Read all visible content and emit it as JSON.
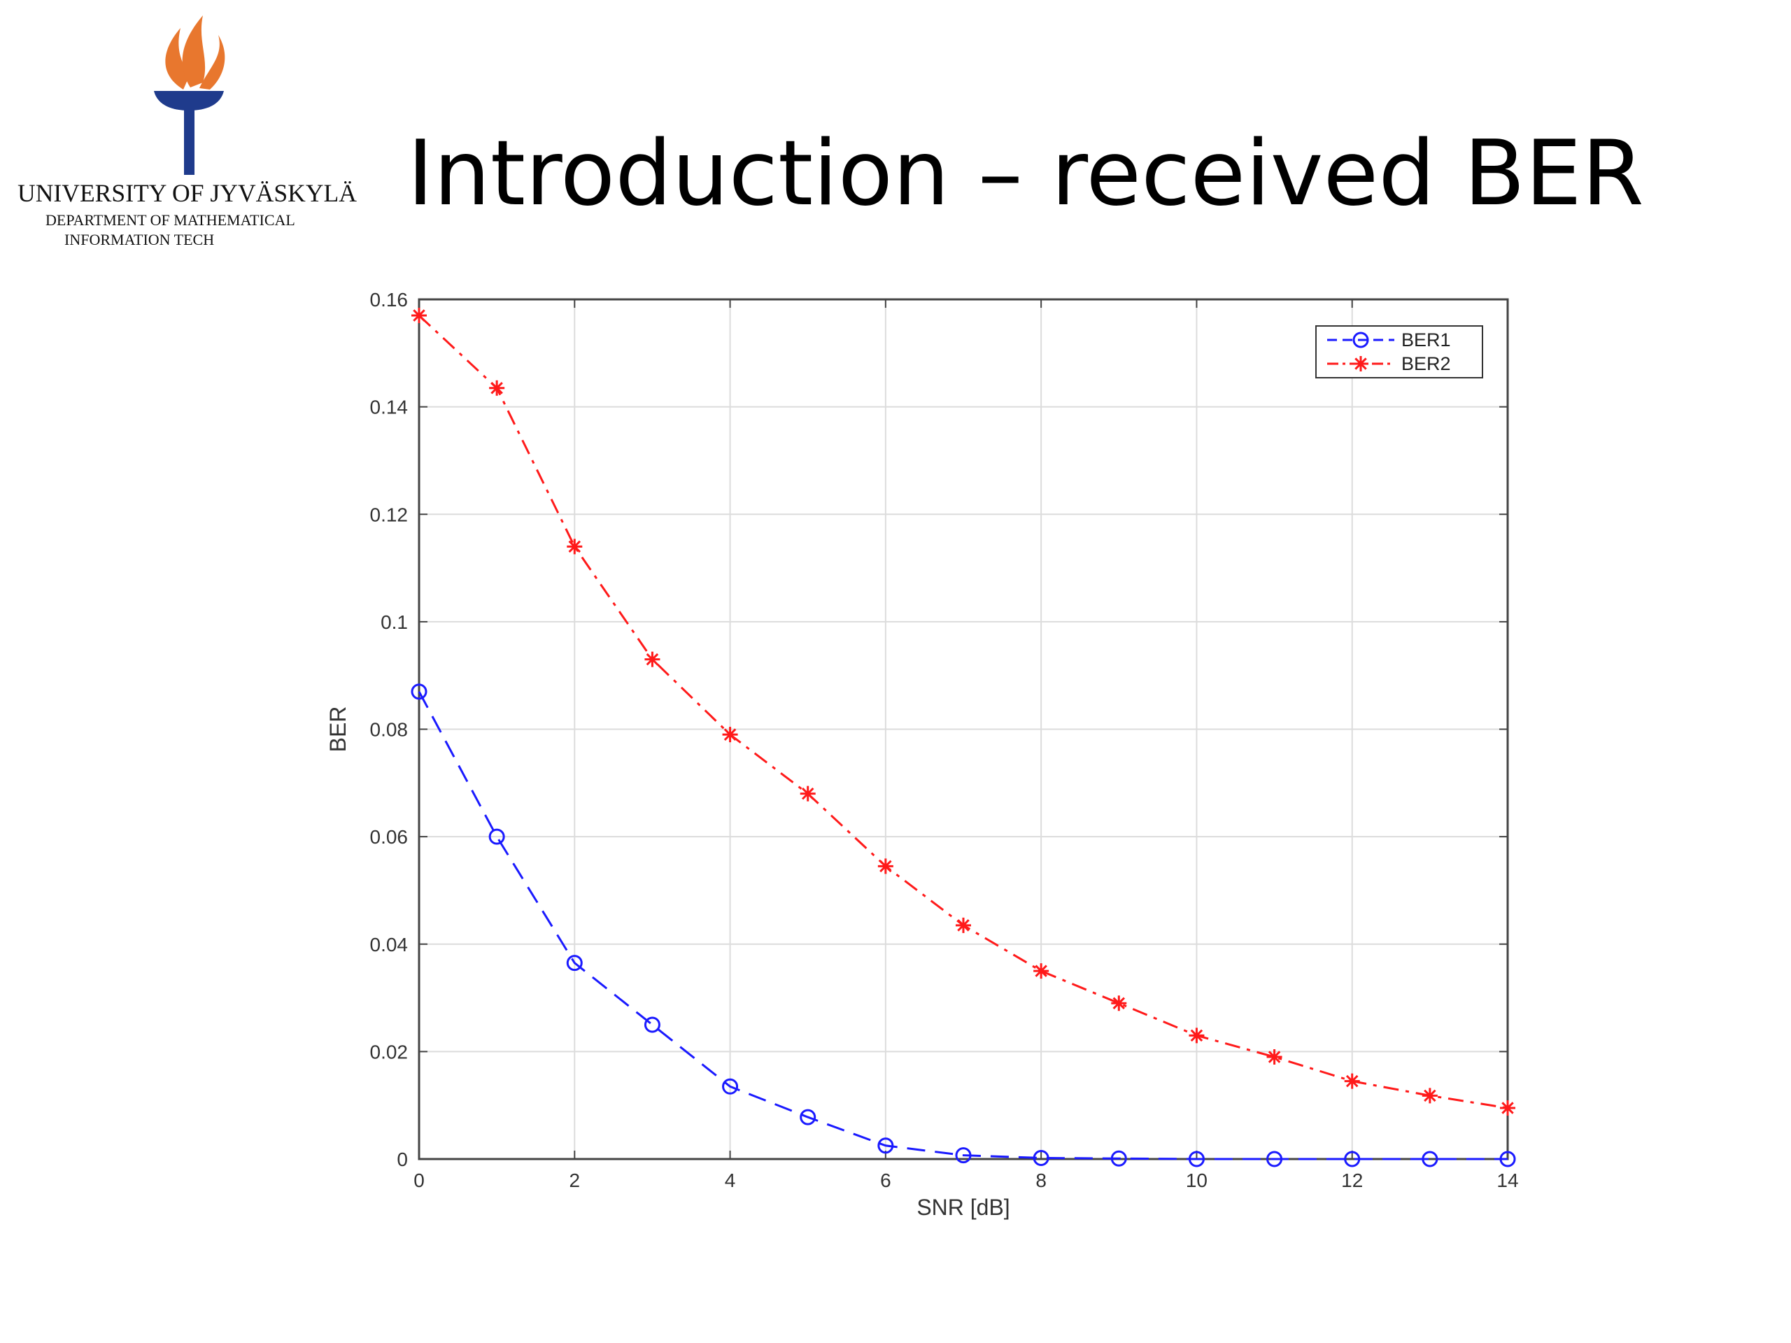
{
  "logo": {
    "university": "UNIVERSITY OF JYVÄSKYLÄ",
    "department": [
      "DEPARTMENT OF MATHEMATICAL",
      "INFORMATION TECH"
    ]
  },
  "slide_title": "Introduction – received BER",
  "chart_data": {
    "type": "line",
    "x": [
      0,
      1,
      2,
      3,
      4,
      5,
      6,
      7,
      8,
      9,
      10,
      11,
      12,
      13,
      14
    ],
    "series": [
      {
        "name": "BER1",
        "color": "#1a1aff",
        "marker": "circle",
        "linestyle": "dashed",
        "values": [
          0.087,
          0.06,
          0.0365,
          0.025,
          0.0135,
          0.0078,
          0.0025,
          0.0007,
          0.0002,
          0.0001,
          0,
          0,
          0,
          0,
          0
        ]
      },
      {
        "name": "BER2",
        "color": "#ff1a1a",
        "marker": "asterisk",
        "linestyle": "dashdot",
        "values": [
          0.157,
          0.1435,
          0.114,
          0.093,
          0.079,
          0.068,
          0.0545,
          0.0435,
          0.035,
          0.029,
          0.023,
          0.019,
          0.0145,
          0.0118,
          0.0095
        ]
      }
    ],
    "x_label": "SNR [dB]",
    "y_label": "BER",
    "xlim": [
      0,
      14
    ],
    "xticks": [
      0,
      2,
      4,
      6,
      8,
      10,
      12,
      14
    ],
    "ylim": [
      0,
      0.16
    ],
    "yticks": [
      0,
      0.02,
      0.04,
      0.06,
      0.08,
      0.1,
      0.12,
      0.14,
      0.16
    ],
    "grid": true,
    "legend": "upper right"
  }
}
